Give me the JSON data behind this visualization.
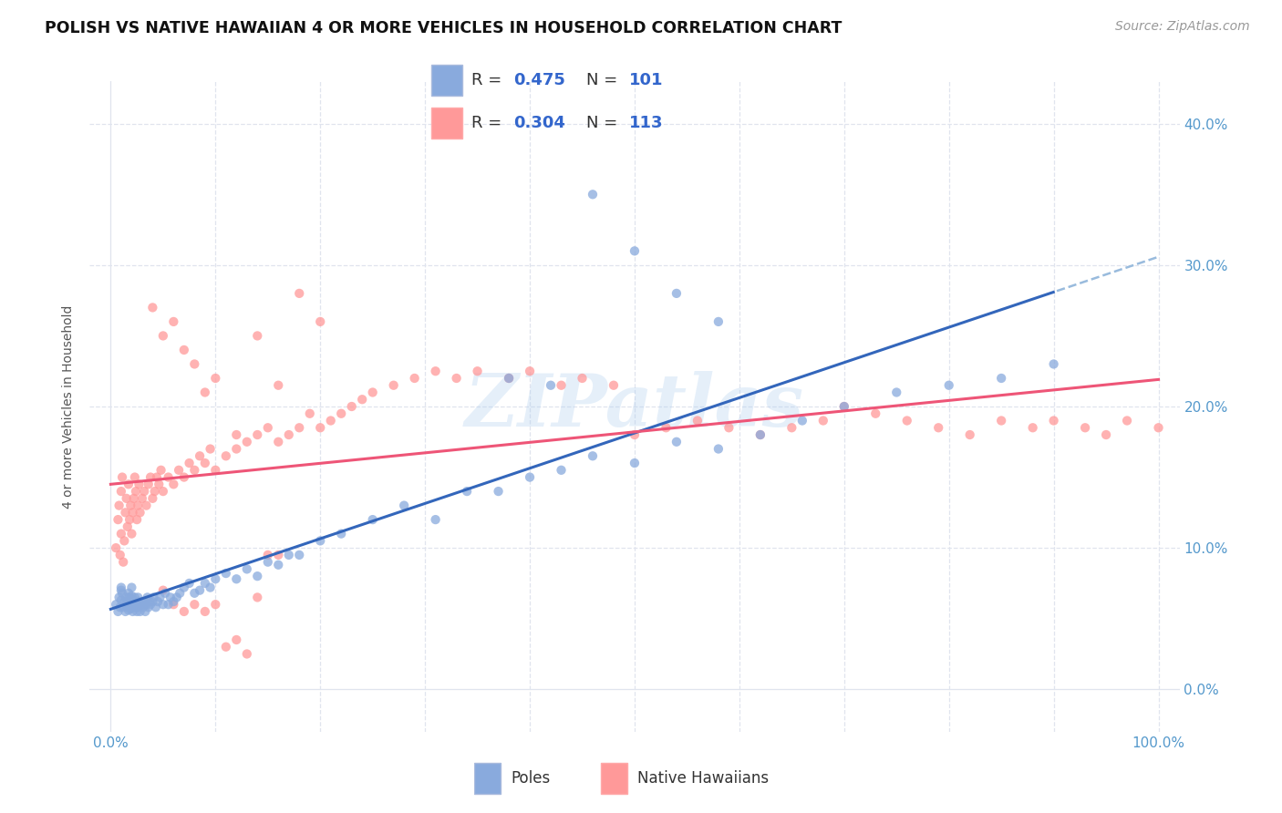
{
  "title": "POLISH VS NATIVE HAWAIIAN 4 OR MORE VEHICLES IN HOUSEHOLD CORRELATION CHART",
  "source": "Source: ZipAtlas.com",
  "ylabel": "4 or more Vehicles in Household",
  "watermark": "ZIPatlas",
  "poles_R": 0.475,
  "poles_N": 101,
  "hawaiians_R": 0.304,
  "hawaiians_N": 113,
  "xlim": [
    -0.02,
    1.02
  ],
  "ylim": [
    -0.03,
    0.43
  ],
  "xticks": [
    0.0,
    0.1,
    0.2,
    0.3,
    0.4,
    0.5,
    0.6,
    0.7,
    0.8,
    0.9,
    1.0
  ],
  "yticks": [
    0.0,
    0.1,
    0.2,
    0.3,
    0.4
  ],
  "ytick_labels": [
    "0.0%",
    "10.0%",
    "20.0%",
    "30.0%",
    "40.0%"
  ],
  "xtick_labels": [
    "0.0%",
    "",
    "",
    "",
    "",
    "",
    "",
    "",
    "",
    "",
    "100.0%"
  ],
  "color_poles": "#89AADD",
  "color_hawaiians": "#FF9999",
  "color_poles_line": "#3366BB",
  "color_hawaiians_line": "#EE5577",
  "color_poles_line_dashed": "#99BBDD",
  "background_color": "#FFFFFF",
  "grid_color": "#E0E4EE",
  "title_fontsize": 12.5,
  "axis_label_fontsize": 10,
  "tick_fontsize": 11,
  "legend_fontsize": 13,
  "source_fontsize": 10,
  "scatter_size": 55,
  "scatter_alpha": 0.75,
  "poles_x": [
    0.005,
    0.007,
    0.008,
    0.009,
    0.01,
    0.01,
    0.01,
    0.011,
    0.012,
    0.013,
    0.014,
    0.015,
    0.015,
    0.016,
    0.016,
    0.017,
    0.017,
    0.018,
    0.018,
    0.019,
    0.019,
    0.02,
    0.02,
    0.02,
    0.021,
    0.021,
    0.022,
    0.022,
    0.023,
    0.023,
    0.024,
    0.024,
    0.025,
    0.025,
    0.026,
    0.026,
    0.027,
    0.028,
    0.029,
    0.03,
    0.031,
    0.032,
    0.033,
    0.034,
    0.035,
    0.036,
    0.037,
    0.038,
    0.04,
    0.041,
    0.043,
    0.045,
    0.047,
    0.05,
    0.052,
    0.055,
    0.057,
    0.06,
    0.063,
    0.066,
    0.07,
    0.075,
    0.08,
    0.085,
    0.09,
    0.095,
    0.1,
    0.11,
    0.12,
    0.13,
    0.14,
    0.15,
    0.16,
    0.17,
    0.18,
    0.2,
    0.22,
    0.25,
    0.28,
    0.31,
    0.34,
    0.37,
    0.4,
    0.43,
    0.46,
    0.5,
    0.54,
    0.58,
    0.62,
    0.66,
    0.7,
    0.75,
    0.8,
    0.85,
    0.9,
    0.38,
    0.42,
    0.46,
    0.5,
    0.54,
    0.58
  ],
  "poles_y": [
    0.06,
    0.055,
    0.065,
    0.058,
    0.07,
    0.063,
    0.072,
    0.068,
    0.058,
    0.062,
    0.055,
    0.06,
    0.065,
    0.058,
    0.062,
    0.056,
    0.068,
    0.06,
    0.065,
    0.057,
    0.063,
    0.058,
    0.072,
    0.066,
    0.06,
    0.055,
    0.063,
    0.058,
    0.06,
    0.065,
    0.058,
    0.062,
    0.055,
    0.06,
    0.065,
    0.058,
    0.062,
    0.055,
    0.06,
    0.062,
    0.058,
    0.062,
    0.055,
    0.06,
    0.065,
    0.058,
    0.062,
    0.06,
    0.062,
    0.065,
    0.058,
    0.062,
    0.065,
    0.06,
    0.068,
    0.06,
    0.065,
    0.062,
    0.065,
    0.068,
    0.072,
    0.075,
    0.068,
    0.07,
    0.075,
    0.072,
    0.078,
    0.082,
    0.078,
    0.085,
    0.08,
    0.09,
    0.088,
    0.095,
    0.095,
    0.105,
    0.11,
    0.12,
    0.13,
    0.12,
    0.14,
    0.14,
    0.15,
    0.155,
    0.165,
    0.16,
    0.175,
    0.17,
    0.18,
    0.19,
    0.2,
    0.21,
    0.215,
    0.22,
    0.23,
    0.22,
    0.215,
    0.35,
    0.31,
    0.28,
    0.26
  ],
  "hawaiians_x": [
    0.005,
    0.007,
    0.008,
    0.009,
    0.01,
    0.01,
    0.011,
    0.012,
    0.013,
    0.014,
    0.015,
    0.016,
    0.017,
    0.018,
    0.019,
    0.02,
    0.021,
    0.022,
    0.023,
    0.024,
    0.025,
    0.026,
    0.027,
    0.028,
    0.03,
    0.032,
    0.034,
    0.036,
    0.038,
    0.04,
    0.042,
    0.044,
    0.046,
    0.048,
    0.05,
    0.055,
    0.06,
    0.065,
    0.07,
    0.075,
    0.08,
    0.085,
    0.09,
    0.095,
    0.1,
    0.11,
    0.12,
    0.13,
    0.14,
    0.15,
    0.16,
    0.17,
    0.18,
    0.19,
    0.2,
    0.21,
    0.22,
    0.23,
    0.24,
    0.25,
    0.27,
    0.29,
    0.31,
    0.33,
    0.35,
    0.38,
    0.4,
    0.43,
    0.45,
    0.48,
    0.5,
    0.53,
    0.56,
    0.59,
    0.62,
    0.65,
    0.68,
    0.7,
    0.73,
    0.76,
    0.79,
    0.82,
    0.85,
    0.88,
    0.9,
    0.93,
    0.95,
    0.97,
    1.0,
    0.04,
    0.05,
    0.06,
    0.07,
    0.08,
    0.09,
    0.1,
    0.12,
    0.14,
    0.16,
    0.18,
    0.2,
    0.05,
    0.06,
    0.07,
    0.08,
    0.09,
    0.1,
    0.11,
    0.12,
    0.13,
    0.14,
    0.15,
    0.16
  ],
  "hawaiians_y": [
    0.1,
    0.12,
    0.13,
    0.095,
    0.11,
    0.14,
    0.15,
    0.09,
    0.105,
    0.125,
    0.135,
    0.115,
    0.145,
    0.12,
    0.13,
    0.11,
    0.125,
    0.135,
    0.15,
    0.14,
    0.12,
    0.13,
    0.145,
    0.125,
    0.135,
    0.14,
    0.13,
    0.145,
    0.15,
    0.135,
    0.14,
    0.15,
    0.145,
    0.155,
    0.14,
    0.15,
    0.145,
    0.155,
    0.15,
    0.16,
    0.155,
    0.165,
    0.16,
    0.17,
    0.155,
    0.165,
    0.17,
    0.175,
    0.18,
    0.185,
    0.175,
    0.18,
    0.185,
    0.195,
    0.185,
    0.19,
    0.195,
    0.2,
    0.205,
    0.21,
    0.215,
    0.22,
    0.225,
    0.22,
    0.225,
    0.22,
    0.225,
    0.215,
    0.22,
    0.215,
    0.18,
    0.185,
    0.19,
    0.185,
    0.18,
    0.185,
    0.19,
    0.2,
    0.195,
    0.19,
    0.185,
    0.18,
    0.19,
    0.185,
    0.19,
    0.185,
    0.18,
    0.19,
    0.185,
    0.27,
    0.25,
    0.26,
    0.24,
    0.23,
    0.21,
    0.22,
    0.18,
    0.25,
    0.215,
    0.28,
    0.26,
    0.07,
    0.06,
    0.055,
    0.06,
    0.055,
    0.06,
    0.03,
    0.035,
    0.025,
    0.065,
    0.095,
    0.095
  ]
}
